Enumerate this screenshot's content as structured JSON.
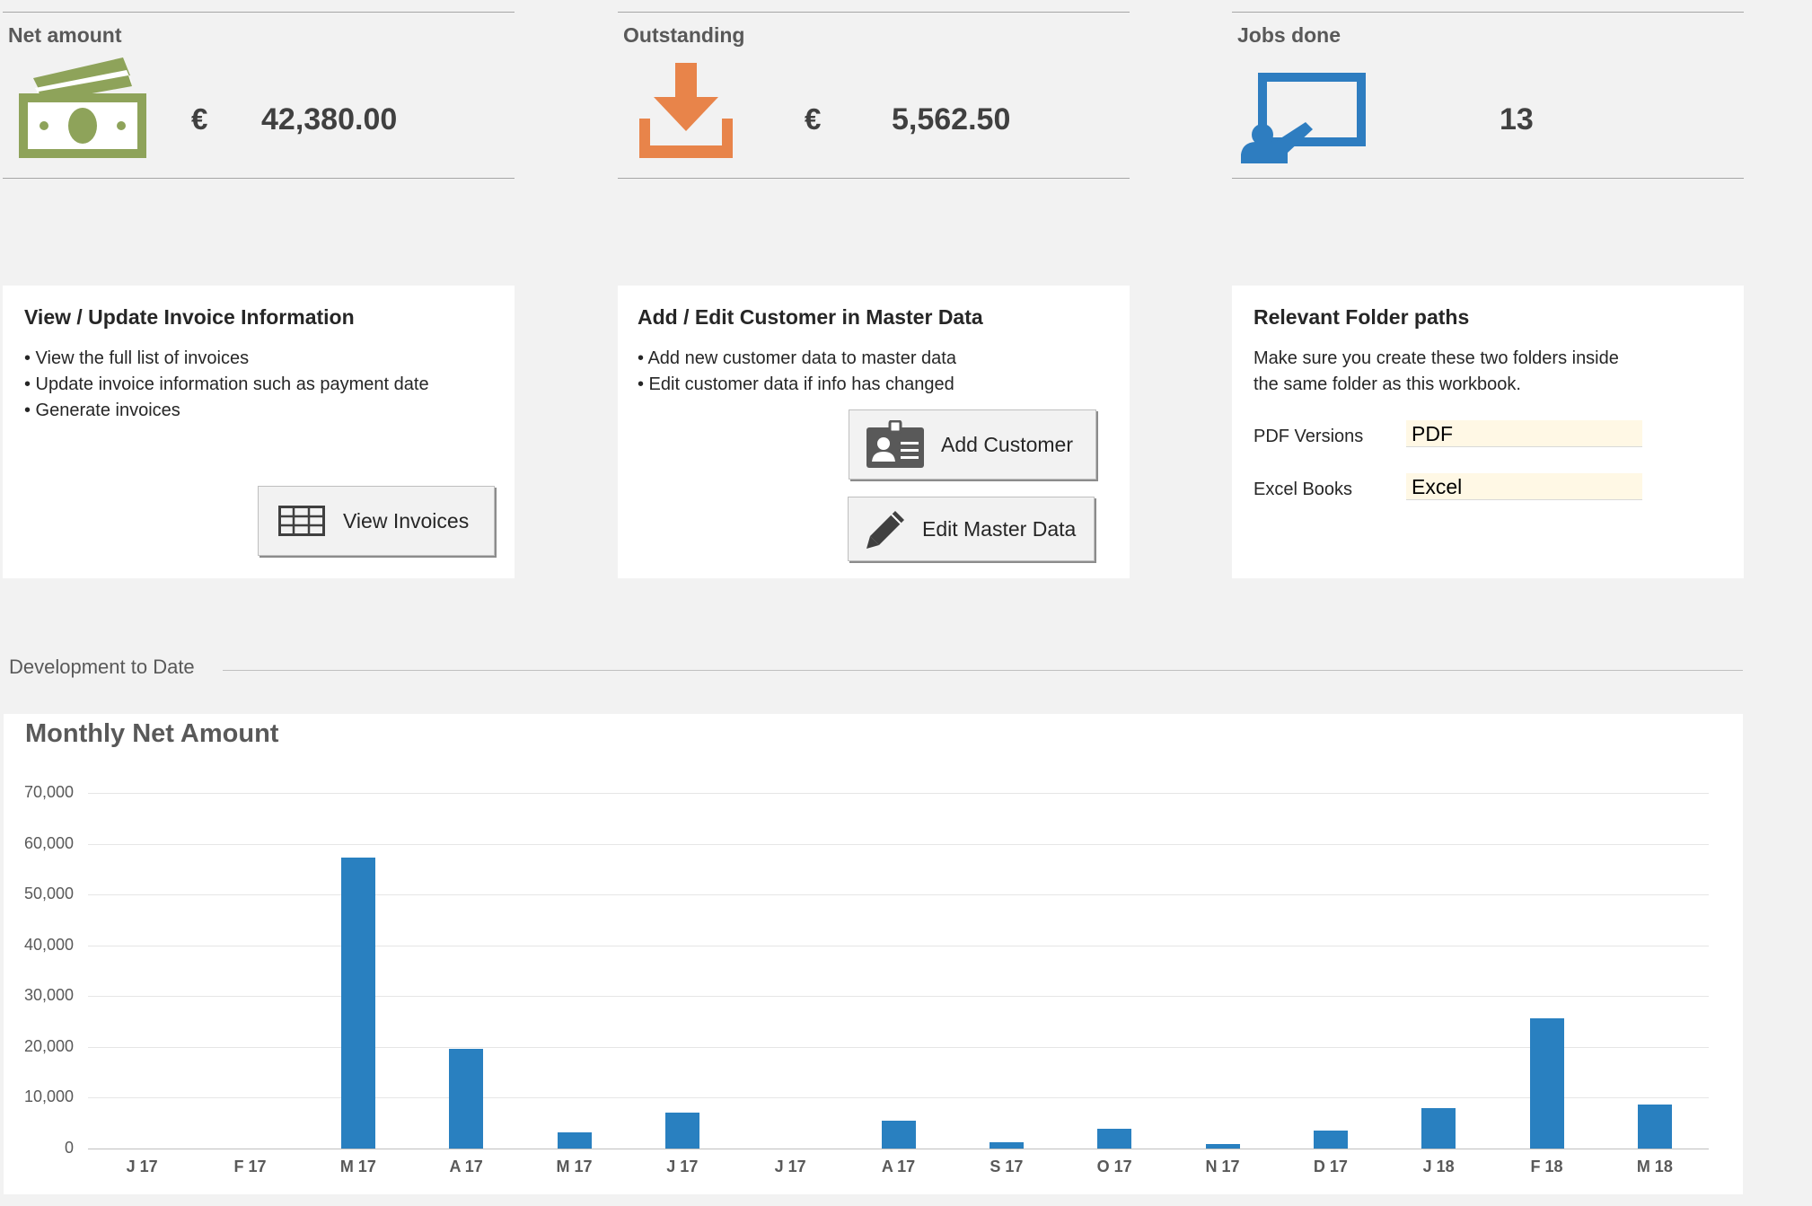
{
  "kpis": [
    {
      "title": "Net amount",
      "currency": "€",
      "value": "42,380.00",
      "icon": "money-icon",
      "color": "#8ea35a"
    },
    {
      "title": "Outstanding",
      "currency": "€",
      "value": "5,562.50",
      "icon": "download-icon",
      "color": "#e8844a"
    },
    {
      "title": "Jobs done",
      "currency": "",
      "value": "13",
      "icon": "presentation-icon",
      "color": "#2e7dc0"
    }
  ],
  "cards": {
    "invoices": {
      "title": "View / Update Invoice Information",
      "lines": [
        "• View the full list of invoices",
        "• Update invoice information such as payment date",
        "• Generate invoices"
      ],
      "button": "View Invoices"
    },
    "customers": {
      "title": "Add / Edit Customer in Master Data",
      "lines": [
        "• Add new customer data to master data",
        "• Edit customer data if info has changed"
      ],
      "add_button": "Add Customer",
      "edit_button": "Edit Master Data"
    },
    "folders": {
      "title": "Relevant Folder paths",
      "lines": [
        "Make sure you create these two folders inside",
        "the same folder as this workbook."
      ],
      "pdf_label": "PDF Versions",
      "pdf_value": "PDF",
      "excel_label": "Excel Books",
      "excel_value": "Excel"
    }
  },
  "section": {
    "title": "Development to Date"
  },
  "chart_data": {
    "type": "bar",
    "title": "Monthly Net Amount",
    "categories": [
      "J 17",
      "F 17",
      "M 17",
      "A 17",
      "M 17",
      "J 17",
      "J 17",
      "A 17",
      "S 17",
      "O 17",
      "N 17",
      "D 17",
      "J 18",
      "F 18",
      "M 18"
    ],
    "values": [
      0,
      0,
      57300,
      19700,
      3200,
      7000,
      0,
      5400,
      1200,
      3900,
      800,
      3600,
      8000,
      25700,
      8600
    ],
    "ylim": [
      0,
      70000
    ],
    "yticks": [
      "0",
      "10,000",
      "20,000",
      "30,000",
      "40,000",
      "50,000",
      "60,000",
      "70,000"
    ],
    "color": "#2980c0",
    "grid": true
  }
}
